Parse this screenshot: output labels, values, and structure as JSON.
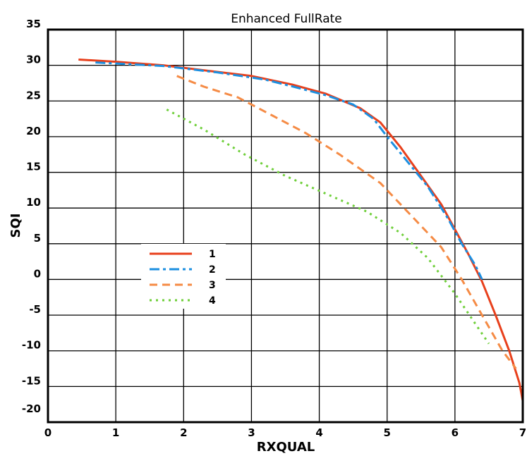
{
  "chart_data": {
    "type": "line",
    "title": "Enhanced FullRate",
    "xlabel": "RXQUAL",
    "ylabel": "SQI",
    "xlim": [
      0,
      7
    ],
    "ylim": [
      -21,
      34
    ],
    "grid": true,
    "legend_position": "center-left",
    "x_ticks": [
      {
        "value": 0,
        "label": "0"
      },
      {
        "value": 1,
        "label": "1"
      },
      {
        "value": 2,
        "label": "2"
      },
      {
        "value": 3,
        "label": "3"
      },
      {
        "value": 4,
        "label": "4"
      },
      {
        "value": 5,
        "label": "5"
      },
      {
        "value": 6,
        "label": "6"
      },
      {
        "value": 7,
        "label": "7"
      }
    ],
    "y_ticks": [
      {
        "value": 35,
        "label": "35"
      },
      {
        "value": 30,
        "label": "30"
      },
      {
        "value": 25,
        "label": "25"
      },
      {
        "value": 20,
        "label": "20"
      },
      {
        "value": 15,
        "label": "15"
      },
      {
        "value": 10,
        "label": "10"
      },
      {
        "value": 5,
        "label": "5"
      },
      {
        "value": 0,
        "label": "0"
      },
      {
        "value": -5,
        "label": "-5"
      },
      {
        "value": -10,
        "label": "-10"
      },
      {
        "value": -15,
        "label": "-15"
      },
      {
        "value": -20,
        "label": "-20"
      }
    ],
    "grid_y": [
      34,
      29,
      24,
      19,
      14,
      9,
      4,
      -1,
      -6,
      -11,
      -16
    ],
    "series": [
      {
        "name": "1",
        "color": "#e8401c",
        "style": "solid",
        "x": [
          0.45,
          1.0,
          1.7,
          2.3,
          3.0,
          3.6,
          4.1,
          4.6,
          4.9,
          5.2,
          5.5,
          5.8,
          6.0,
          6.2,
          6.4,
          6.6,
          6.8,
          6.95,
          7.0
        ],
        "y": [
          29.8,
          29.5,
          29.0,
          28.3,
          27.5,
          26.3,
          25.0,
          23.0,
          21.0,
          17.5,
          13.5,
          9.5,
          6.0,
          2.5,
          -1.3,
          -6.0,
          -11.0,
          -15.5,
          -18.0
        ]
      },
      {
        "name": "2",
        "color": "#1c8fe0",
        "style": "dashdot",
        "x": [
          0.7,
          1.7,
          2.5,
          3.2,
          3.7,
          4.1,
          4.5,
          4.8,
          5.0,
          5.3,
          5.6,
          5.9,
          6.1,
          6.3,
          6.4
        ],
        "y": [
          29.4,
          28.9,
          28.0,
          27.0,
          25.8,
          24.8,
          23.5,
          21.5,
          19.0,
          15.5,
          12.0,
          7.5,
          4.0,
          1.0,
          -1.0
        ]
      },
      {
        "name": "3",
        "color": "#f58b45",
        "style": "dashed",
        "x": [
          1.9,
          2.3,
          2.8,
          3.3,
          3.8,
          4.3,
          4.9,
          5.4,
          5.8,
          6.1,
          6.4,
          6.7,
          6.9
        ],
        "y": [
          27.5,
          26.0,
          24.5,
          22.0,
          19.5,
          16.5,
          12.5,
          7.5,
          3.5,
          -1.0,
          -6.0,
          -11.0,
          -13.5
        ]
      },
      {
        "name": "4",
        "color": "#6fcf3a",
        "style": "dotted",
        "x": [
          1.75,
          2.3,
          2.9,
          3.5,
          4.1,
          4.7,
          5.2,
          5.6,
          6.0,
          6.25,
          6.5
        ],
        "y": [
          22.8,
          20.0,
          16.5,
          13.5,
          11.0,
          8.5,
          5.5,
          2.0,
          -3.0,
          -6.5,
          -10.0
        ]
      }
    ]
  }
}
